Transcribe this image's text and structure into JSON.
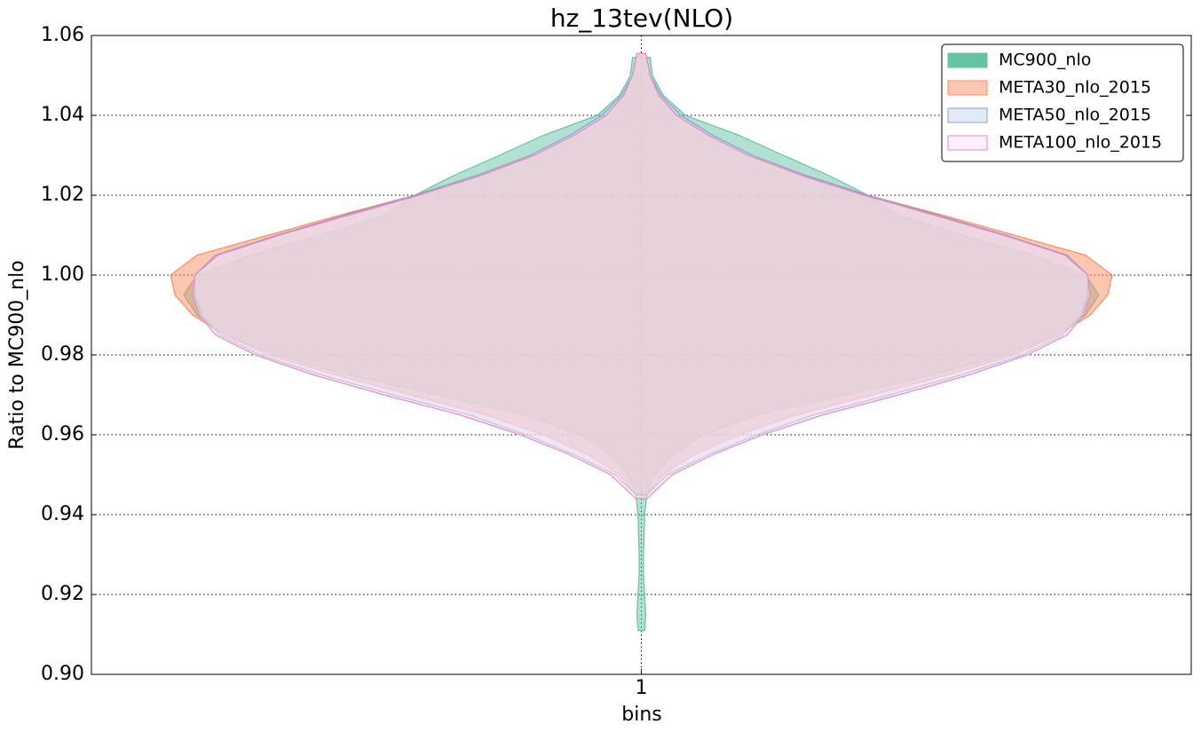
{
  "chart_data": {
    "type": "violin",
    "title": "hz_13tev(NLO)",
    "x_label": "bins",
    "y_label": "Ratio to MC900_nlo",
    "categories": [
      "1"
    ],
    "xlim": [
      0.5,
      1.5
    ],
    "ylim": [
      0.9,
      1.06
    ],
    "yticks": [
      {
        "value": 0.9,
        "label": "0.90"
      },
      0.92,
      0.94,
      0.96,
      0.98,
      {
        "value": 1.0,
        "label": "1.00"
      },
      1.02,
      1.04,
      1.06
    ],
    "grid": true,
    "legend": "upper right",
    "series": [
      {
        "name": "MC900_nlo",
        "color": "#66c2a5",
        "edge": "#66c2a5",
        "y": [
          0.911,
          0.915,
          0.92,
          0.925,
          0.93,
          0.94,
          0.945,
          0.95,
          0.955,
          0.96,
          0.965,
          0.97,
          0.975,
          0.98,
          0.985,
          0.99,
          0.995,
          1.0,
          1.005,
          1.01,
          1.015,
          1.02,
          1.025,
          1.03,
          1.035,
          1.04,
          1.045,
          1.05,
          1.0545
        ],
        "half_widths": [
          0.003,
          0.004,
          0.003,
          0.002,
          0.002,
          0.003,
          0.005,
          0.012,
          0.028,
          0.056,
          0.105,
          0.186,
          0.266,
          0.331,
          0.379,
          0.404,
          0.416,
          0.404,
          0.355,
          0.291,
          0.234,
          0.206,
          0.17,
          0.129,
          0.089,
          0.04,
          0.02,
          0.01,
          0.008
        ]
      },
      {
        "name": "META30_nlo_2015",
        "color": "#fc8d62",
        "edge": "#fc8d62",
        "y": [
          0.945,
          0.95,
          0.955,
          0.96,
          0.965,
          0.97,
          0.975,
          0.98,
          0.985,
          0.99,
          0.995,
          1.0,
          1.005,
          1.01,
          1.015,
          1.02,
          1.025,
          1.03,
          1.035,
          1.04,
          1.045,
          1.05,
          1.055
        ],
        "half_widths": [
          0.005,
          0.02,
          0.048,
          0.089,
          0.141,
          0.21,
          0.278,
          0.339,
          0.379,
          0.408,
          0.424,
          0.428,
          0.404,
          0.339,
          0.274,
          0.206,
          0.149,
          0.097,
          0.061,
          0.032,
          0.016,
          0.008,
          0.004
        ]
      },
      {
        "name": "META50_nlo_2015",
        "color": "#c6d4f2",
        "edge": "#8da0cb",
        "y": [
          0.945,
          0.95,
          0.955,
          0.96,
          0.965,
          0.97,
          0.975,
          0.98,
          0.985,
          0.99,
          0.995,
          1.0,
          1.005,
          1.01,
          1.015,
          1.02,
          1.025,
          1.03,
          1.035,
          1.04,
          1.045,
          1.05,
          1.0555
        ],
        "half_widths": [
          0.005,
          0.024,
          0.061,
          0.105,
          0.157,
          0.226,
          0.291,
          0.347,
          0.383,
          0.4,
          0.406,
          0.406,
          0.387,
          0.331,
          0.27,
          0.206,
          0.149,
          0.101,
          0.065,
          0.036,
          0.018,
          0.008,
          0.004
        ]
      },
      {
        "name": "META100_nlo_2015",
        "color": "#fbe0f0",
        "edge": "#e78ac3",
        "y": [
          0.944,
          0.95,
          0.955,
          0.96,
          0.965,
          0.97,
          0.975,
          0.98,
          0.985,
          0.99,
          0.995,
          1.0,
          1.005,
          1.01,
          1.015,
          1.02,
          1.025,
          1.03,
          1.035,
          1.04,
          1.045,
          1.05,
          1.0555
        ],
        "half_widths": [
          0.005,
          0.028,
          0.065,
          0.11,
          0.165,
          0.234,
          0.298,
          0.351,
          0.387,
          0.402,
          0.408,
          0.406,
          0.385,
          0.329,
          0.266,
          0.202,
          0.145,
          0.097,
          0.061,
          0.032,
          0.016,
          0.008,
          0.004
        ]
      }
    ]
  }
}
